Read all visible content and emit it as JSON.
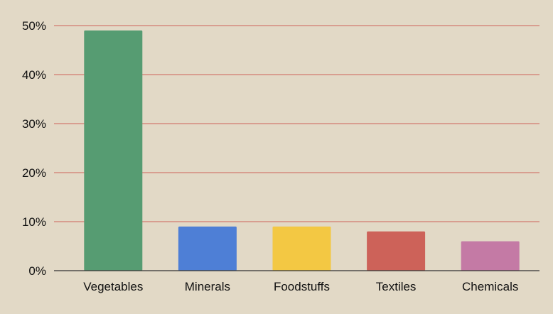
{
  "chart_data": {
    "type": "bar",
    "title": "",
    "xlabel": "",
    "ylabel": "",
    "categories": [
      "Vegetables",
      "Minerals",
      "Foodstuffs",
      "Textiles",
      "Chemicals"
    ],
    "values": [
      49,
      9,
      9,
      8,
      6
    ],
    "colors": [
      "#569c72",
      "#4e7fd6",
      "#f3c843",
      "#cd6259",
      "#c47aa5"
    ],
    "ylim": [
      0,
      50
    ],
    "yticks": [
      0,
      10,
      20,
      30,
      40,
      50
    ],
    "ytick_labels": [
      "0%",
      "10%",
      "20%",
      "30%",
      "40%",
      "50%"
    ],
    "grid": true,
    "grid_color": "#cd6259",
    "background": "#e2d9c6",
    "legend": "none"
  }
}
